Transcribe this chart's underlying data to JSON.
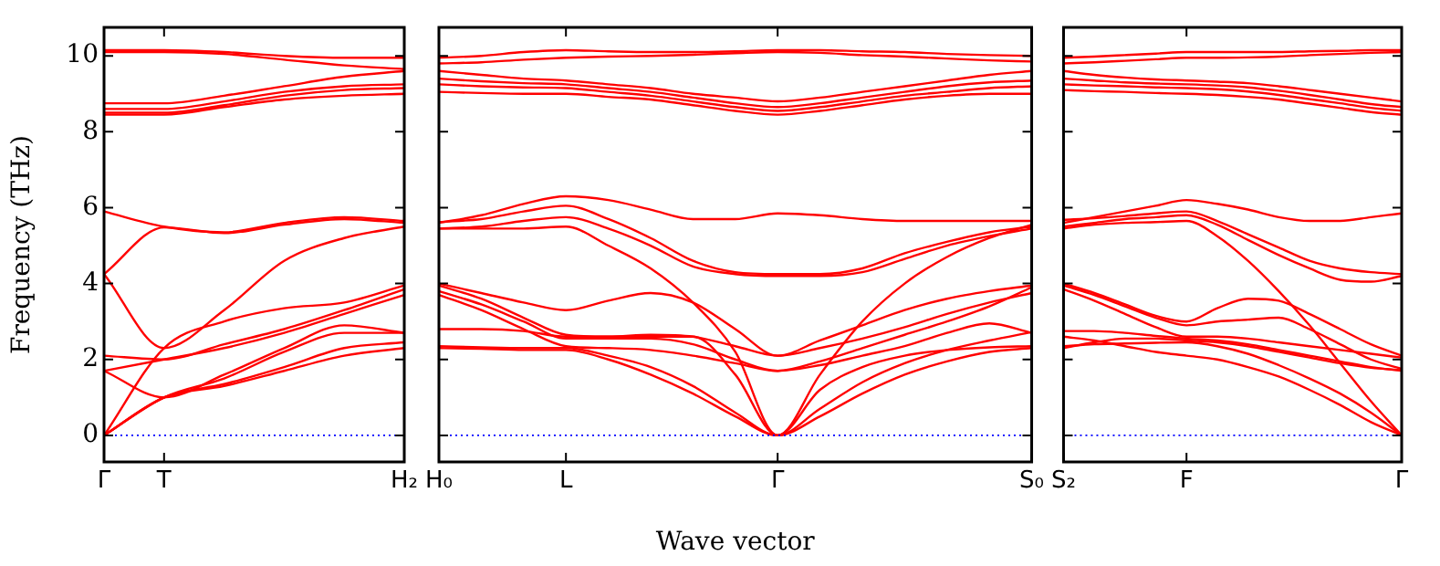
{
  "chart_data": [
    {
      "type": "line",
      "ylabel": "Frequency (THz)",
      "marker": "none",
      "categories": [
        "Γ",
        "T",
        null,
        null,
        null,
        "H₂"
      ],
      "ylim": [
        -0.7,
        10.75
      ],
      "yticks": [
        0,
        2,
        4,
        6,
        8,
        10
      ],
      "ref_lines": [
        {
          "axis": "y",
          "value": 0,
          "color": "#0000ff",
          "line_style": "dotted"
        }
      ],
      "series": [
        {
          "color": "#ff0000",
          "values": [
            10.15,
            10.15,
            10.1,
            10.0,
            9.95,
            9.95
          ]
        },
        {
          "color": "#ff0000",
          "values": [
            10.1,
            10.1,
            10.05,
            9.9,
            9.75,
            9.65
          ]
        },
        {
          "color": "#ff0000",
          "values": [
            8.75,
            8.75,
            8.95,
            9.2,
            9.45,
            9.6
          ]
        },
        {
          "color": "#ff0000",
          "values": [
            8.6,
            8.6,
            8.8,
            9.05,
            9.2,
            9.25
          ]
        },
        {
          "color": "#ff0000",
          "values": [
            8.5,
            8.5,
            8.7,
            8.95,
            9.1,
            9.15
          ]
        },
        {
          "color": "#ff0000",
          "values": [
            8.45,
            8.45,
            8.65,
            8.85,
            8.95,
            9.0
          ]
        },
        {
          "color": "#ff0000",
          "values": [
            5.9,
            5.5,
            5.35,
            5.6,
            5.75,
            5.65
          ]
        },
        {
          "color": "#ff0000",
          "values": [
            4.25,
            5.48,
            5.33,
            5.55,
            5.7,
            5.6
          ]
        },
        {
          "color": "#ff0000",
          "values": [
            4.25,
            2.3,
            3.3,
            4.6,
            5.2,
            5.5
          ]
        },
        {
          "color": "#ff0000",
          "values": [
            0,
            2.3,
            3.0,
            3.35,
            3.5,
            3.95
          ]
        },
        {
          "color": "#ff0000",
          "values": [
            2.1,
            2.0,
            2.4,
            2.8,
            3.3,
            3.85
          ]
        },
        {
          "color": "#ff0000",
          "values": [
            1.7,
            2.0,
            2.3,
            2.7,
            3.2,
            3.7
          ]
        },
        {
          "color": "#ff0000",
          "values": [
            1.7,
            1.0,
            1.6,
            2.3,
            2.9,
            2.7
          ]
        },
        {
          "color": "#ff0000",
          "values": [
            0,
            1.0,
            1.5,
            2.2,
            2.7,
            2.7
          ]
        },
        {
          "color": "#ff0000",
          "values": [
            0,
            1.0,
            1.35,
            1.8,
            2.3,
            2.45
          ]
        },
        {
          "color": "#ff0000",
          "values": [
            0,
            1.0,
            1.3,
            1.7,
            2.1,
            2.3
          ]
        }
      ]
    },
    {
      "type": "line",
      "xlabel": "Wave vector",
      "marker": "none",
      "tick_labels": "x",
      "categories": [
        "H₀",
        null,
        null,
        "L",
        null,
        null,
        null,
        null,
        "Γ",
        null,
        null,
        null,
        null,
        null,
        "S₀"
      ],
      "ylim": [
        -0.7,
        10.75
      ],
      "yticks": [
        0,
        2,
        4,
        6,
        8,
        10
      ],
      "ref_lines": [
        {
          "axis": "y",
          "value": 0,
          "color": "#0000ff",
          "line_style": "dotted"
        }
      ],
      "series": [
        {
          "color": "#ff0000",
          "values": [
            9.95,
            10.0,
            10.1,
            10.15,
            10.12,
            10.1,
            10.1,
            10.12,
            10.15,
            10.15,
            10.12,
            10.1,
            10.05,
            10.02,
            10.0
          ]
        },
        {
          "color": "#ff0000",
          "values": [
            9.8,
            9.83,
            9.9,
            9.95,
            9.98,
            10.0,
            10.03,
            10.07,
            10.1,
            10.08,
            10.02,
            9.98,
            9.93,
            9.88,
            9.85
          ]
        },
        {
          "color": "#ff0000",
          "values": [
            9.6,
            9.5,
            9.4,
            9.35,
            9.25,
            9.15,
            9.0,
            8.9,
            8.8,
            8.9,
            9.05,
            9.2,
            9.35,
            9.5,
            9.6
          ]
        },
        {
          "color": "#ff0000",
          "values": [
            9.4,
            9.33,
            9.28,
            9.25,
            9.15,
            9.05,
            8.9,
            8.75,
            8.65,
            8.75,
            8.9,
            9.05,
            9.2,
            9.3,
            9.35
          ]
        },
        {
          "color": "#ff0000",
          "values": [
            9.25,
            9.2,
            9.17,
            9.15,
            9.05,
            8.95,
            8.8,
            8.65,
            8.55,
            8.65,
            8.8,
            8.95,
            9.05,
            9.15,
            9.2
          ]
        },
        {
          "color": "#ff0000",
          "values": [
            9.05,
            9.02,
            9.0,
            9.0,
            8.92,
            8.85,
            8.7,
            8.55,
            8.45,
            8.55,
            8.7,
            8.85,
            8.95,
            9.0,
            9.0
          ]
        },
        {
          "color": "#ff0000",
          "values": [
            5.6,
            5.8,
            6.1,
            6.3,
            6.2,
            5.95,
            5.7,
            5.7,
            5.85,
            5.8,
            5.7,
            5.65,
            5.65,
            5.65,
            5.65
          ]
        },
        {
          "color": "#ff0000",
          "values": [
            5.62,
            5.7,
            5.9,
            6.05,
            5.7,
            5.2,
            4.6,
            4.3,
            4.25,
            4.25,
            4.4,
            4.8,
            5.1,
            5.35,
            5.5
          ]
        },
        {
          "color": "#ff0000",
          "values": [
            5.45,
            5.5,
            5.65,
            5.75,
            5.45,
            5.0,
            4.45,
            4.25,
            4.2,
            4.2,
            4.3,
            4.65,
            5.0,
            5.25,
            5.45
          ]
        },
        {
          "color": "#ff0000",
          "values": [
            5.45,
            5.45,
            5.45,
            5.5,
            5.0,
            4.4,
            3.5,
            2.2,
            0,
            1.6,
            3.0,
            4.0,
            4.7,
            5.2,
            5.55
          ]
        },
        {
          "color": "#ff0000",
          "values": [
            4.0,
            3.75,
            3.5,
            3.3,
            3.55,
            3.75,
            3.5,
            2.8,
            2.1,
            2.5,
            2.9,
            3.3,
            3.6,
            3.8,
            3.95
          ]
        },
        {
          "color": "#ff0000",
          "values": [
            3.95,
            3.6,
            3.1,
            2.65,
            2.6,
            2.65,
            2.6,
            2.35,
            2.1,
            2.3,
            2.55,
            2.85,
            3.2,
            3.5,
            3.75
          ]
        },
        {
          "color": "#ff0000",
          "values": [
            3.8,
            3.45,
            3.0,
            2.55,
            2.55,
            2.55,
            2.4,
            2.0,
            1.7,
            1.95,
            2.3,
            2.65,
            3.0,
            3.4,
            3.9
          ]
        },
        {
          "color": "#ff0000",
          "values": [
            3.7,
            3.3,
            2.8,
            2.35,
            2.3,
            2.25,
            2.1,
            1.9,
            1.7,
            1.85,
            2.1,
            2.35,
            2.7,
            2.95,
            2.7
          ]
        },
        {
          "color": "#ff0000",
          "values": [
            2.8,
            2.8,
            2.75,
            2.6,
            2.6,
            2.6,
            2.6,
            1.6,
            0,
            1.2,
            1.8,
            2.1,
            2.25,
            2.32,
            2.35
          ]
        },
        {
          "color": "#ff0000",
          "values": [
            2.35,
            2.32,
            2.3,
            2.3,
            2.1,
            1.8,
            1.3,
            0.6,
            0,
            0.7,
            1.4,
            1.9,
            2.25,
            2.5,
            2.72
          ]
        },
        {
          "color": "#ff0000",
          "values": [
            2.3,
            2.28,
            2.25,
            2.25,
            2.0,
            1.6,
            1.1,
            0.5,
            0,
            0.5,
            1.1,
            1.6,
            1.95,
            2.2,
            2.3
          ]
        }
      ]
    },
    {
      "type": "line",
      "marker": "none",
      "tick_labels": "x",
      "categories": [
        "S₂",
        null,
        null,
        null,
        "F",
        null,
        null,
        null,
        null,
        null,
        null,
        "Γ"
      ],
      "ylim": [
        -0.7,
        10.75
      ],
      "yticks": [
        0,
        2,
        4,
        6,
        8,
        10
      ],
      "ref_lines": [
        {
          "axis": "y",
          "value": 0,
          "color": "#0000ff",
          "line_style": "dotted"
        }
      ],
      "series": [
        {
          "color": "#ff0000",
          "values": [
            9.95,
            9.98,
            10.02,
            10.06,
            10.1,
            10.1,
            10.1,
            10.1,
            10.12,
            10.13,
            10.15,
            10.15
          ]
        },
        {
          "color": "#ff0000",
          "values": [
            9.8,
            9.83,
            9.87,
            9.91,
            9.95,
            9.95,
            9.96,
            9.98,
            10.02,
            10.05,
            10.08,
            10.1
          ]
        },
        {
          "color": "#ff0000",
          "values": [
            9.6,
            9.5,
            9.43,
            9.38,
            9.35,
            9.32,
            9.28,
            9.2,
            9.1,
            9.0,
            8.9,
            8.8
          ]
        },
        {
          "color": "#ff0000",
          "values": [
            9.4,
            9.35,
            9.3,
            9.27,
            9.25,
            9.22,
            9.17,
            9.08,
            8.97,
            8.85,
            8.73,
            8.65
          ]
        },
        {
          "color": "#ff0000",
          "values": [
            9.25,
            9.22,
            9.2,
            9.17,
            9.15,
            9.12,
            9.06,
            8.97,
            8.86,
            8.75,
            8.63,
            8.55
          ]
        },
        {
          "color": "#ff0000",
          "values": [
            9.1,
            9.07,
            9.05,
            9.02,
            9.0,
            8.97,
            8.92,
            8.85,
            8.74,
            8.63,
            8.52,
            8.45
          ]
        },
        {
          "color": "#ff0000",
          "values": [
            5.6,
            5.75,
            5.9,
            6.05,
            6.2,
            6.1,
            5.95,
            5.75,
            5.65,
            5.65,
            5.75,
            5.85
          ]
        },
        {
          "color": "#ff0000",
          "values": [
            5.68,
            5.72,
            5.78,
            5.85,
            5.9,
            5.65,
            5.3,
            4.95,
            4.6,
            4.4,
            4.3,
            4.25
          ]
        },
        {
          "color": "#ff0000",
          "values": [
            5.5,
            5.6,
            5.7,
            5.75,
            5.8,
            5.55,
            5.15,
            4.75,
            4.4,
            4.1,
            4.05,
            4.2
          ]
        },
        {
          "color": "#ff0000",
          "values": [
            5.45,
            5.55,
            5.6,
            5.62,
            5.65,
            5.25,
            4.6,
            3.8,
            2.9,
            1.9,
            0.9,
            0
          ]
        },
        {
          "color": "#ff0000",
          "values": [
            4.0,
            3.75,
            3.45,
            3.15,
            3.0,
            3.35,
            3.6,
            3.55,
            3.2,
            2.8,
            2.4,
            2.1
          ]
        },
        {
          "color": "#ff0000",
          "values": [
            3.95,
            3.7,
            3.4,
            3.1,
            2.9,
            3.0,
            3.05,
            3.1,
            2.8,
            2.4,
            2.0,
            1.75
          ]
        },
        {
          "color": "#ff0000",
          "values": [
            3.85,
            3.55,
            3.2,
            2.85,
            2.6,
            2.6,
            2.55,
            2.45,
            2.35,
            2.25,
            2.15,
            2.05
          ]
        },
        {
          "color": "#ff0000",
          "values": [
            2.75,
            2.75,
            2.7,
            2.62,
            2.55,
            2.5,
            2.4,
            2.25,
            2.1,
            1.95,
            1.8,
            1.7
          ]
        },
        {
          "color": "#ff0000",
          "values": [
            2.3,
            2.45,
            2.55,
            2.55,
            2.5,
            2.45,
            2.35,
            2.2,
            2.05,
            1.9,
            1.78,
            1.72
          ]
        },
        {
          "color": "#ff0000",
          "values": [
            2.35,
            2.4,
            2.42,
            2.44,
            2.45,
            2.35,
            2.15,
            1.85,
            1.5,
            1.1,
            0.6,
            0
          ]
        },
        {
          "color": "#ff0000",
          "values": [
            2.6,
            2.5,
            2.35,
            2.2,
            2.1,
            2.0,
            1.8,
            1.55,
            1.2,
            0.8,
            0.35,
            0
          ]
        }
      ]
    }
  ]
}
